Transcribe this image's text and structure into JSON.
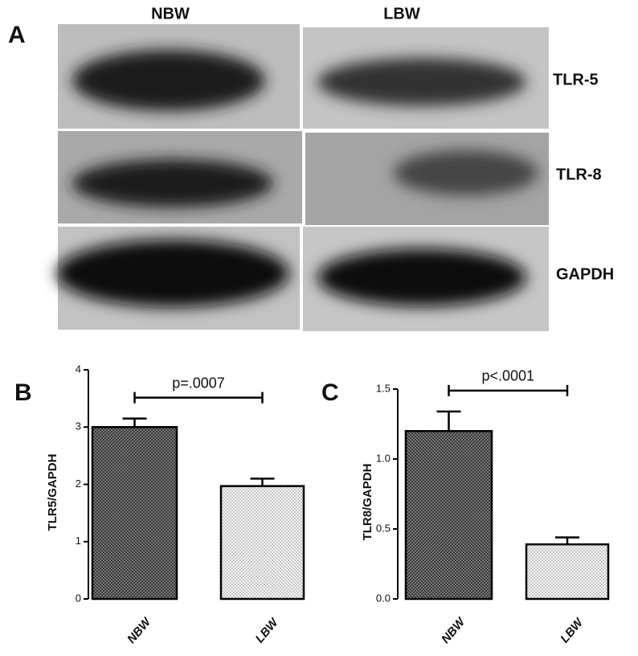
{
  "panel_labels": [
    "A",
    "B",
    "C"
  ],
  "blot": {
    "columns": [
      "NBW",
      "LBW"
    ],
    "rows": [
      "TLR-5",
      "TLR-8",
      "GAPDH"
    ]
  },
  "chart_data": [
    {
      "type": "bar",
      "y_label": "TLR5/GAPDH",
      "categories": [
        "NBW",
        "LBW"
      ],
      "values": [
        3.0,
        1.97
      ],
      "errors": [
        0.15,
        0.13
      ],
      "colors": [
        "#3a3a3a",
        "#c8c8c8"
      ],
      "ylim": [
        0,
        4
      ],
      "yticks": [
        0,
        1,
        2,
        3,
        4
      ],
      "annotation": "p=.0007"
    },
    {
      "type": "bar",
      "y_label": "TLR8/GAPDH",
      "categories": [
        "NBW",
        "LBW"
      ],
      "values": [
        1.2,
        0.39
      ],
      "errors": [
        0.14,
        0.05
      ],
      "colors": [
        "#3a3a3a",
        "#c8c8c8"
      ],
      "ylim": [
        0,
        1.5
      ],
      "yticks": [
        {
          "value": 0,
          "label": "0.0"
        },
        {
          "value": 0.5,
          "label": "0.5"
        },
        {
          "value": 1,
          "label": "1.0"
        },
        {
          "value": 1.5,
          "label": "1.5"
        }
      ],
      "annotation": "p<.0001"
    }
  ]
}
